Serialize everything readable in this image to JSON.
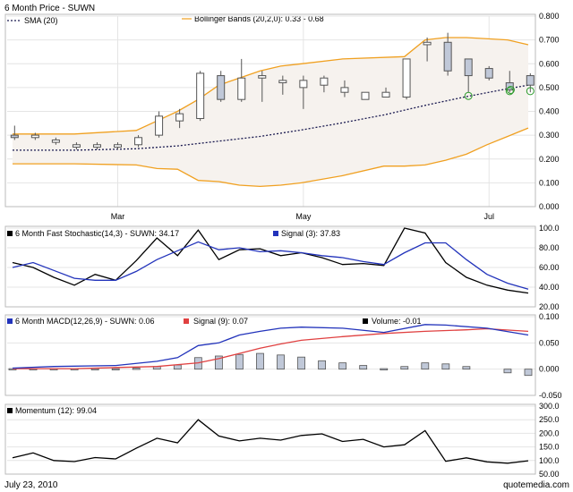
{
  "colors": {
    "sma": "#1a1a50",
    "band": "#f0a020",
    "bandFill": "#f6f2ee",
    "candle": "#555555",
    "candleUp": "#ffffff",
    "candleDown": "#c0c8d8",
    "stoch": "#000000",
    "signal": "#2233bb",
    "macd": "#2233bb",
    "macdSignal": "#e04040",
    "volume": "#000000",
    "hist": "#c0c8d8",
    "momentum": "#000000",
    "marker": "#2b9a2b"
  },
  "chart_data": [
    {
      "type": "candlestick",
      "title": "6 Month Price - SUWN",
      "legend": {
        "sma": "SMA (20)",
        "bollinger": "Bollinger Bands (20,2,0): 0.33 - 0.68"
      },
      "ylim": [
        0,
        0.8
      ],
      "yticks": [
        0,
        0.1,
        0.2,
        0.3,
        0.4,
        0.5,
        0.6,
        0.7,
        0.8
      ],
      "ytick_labels": [
        "0.000",
        "0.100",
        "0.200",
        "0.300",
        "0.400",
        "0.500",
        "0.600",
        "0.700",
        "0.800"
      ],
      "xlim": [
        0,
        25
      ],
      "month_labels": [
        {
          "x": 5.1,
          "label": "Mar"
        },
        {
          "x": 14.1,
          "label": "May"
        },
        {
          "x": 23.1,
          "label": "Jul"
        }
      ],
      "candles": [
        {
          "x": 0.1,
          "o": 0.3,
          "c": 0.29,
          "h": 0.34,
          "l": 0.28
        },
        {
          "x": 1.1,
          "o": 0.29,
          "c": 0.3,
          "h": 0.31,
          "l": 0.28
        },
        {
          "x": 2.1,
          "o": 0.27,
          "c": 0.28,
          "h": 0.29,
          "l": 0.26
        },
        {
          "x": 3.1,
          "o": 0.25,
          "c": 0.26,
          "h": 0.27,
          "l": 0.24
        },
        {
          "x": 4.1,
          "o": 0.25,
          "c": 0.26,
          "h": 0.27,
          "l": 0.24
        },
        {
          "x": 5.1,
          "o": 0.25,
          "c": 0.26,
          "h": 0.27,
          "l": 0.24
        },
        {
          "x": 6.1,
          "o": 0.26,
          "c": 0.29,
          "h": 0.3,
          "l": 0.25
        },
        {
          "x": 7.1,
          "o": 0.3,
          "c": 0.38,
          "h": 0.4,
          "l": 0.29
        },
        {
          "x": 8.1,
          "o": 0.36,
          "c": 0.39,
          "h": 0.41,
          "l": 0.33
        },
        {
          "x": 9.1,
          "o": 0.37,
          "c": 0.56,
          "h": 0.57,
          "l": 0.36
        },
        {
          "x": 10.1,
          "o": 0.55,
          "c": 0.45,
          "h": 0.57,
          "l": 0.44
        },
        {
          "x": 11.1,
          "o": 0.45,
          "c": 0.54,
          "h": 0.62,
          "l": 0.44
        },
        {
          "x": 12.1,
          "o": 0.54,
          "c": 0.55,
          "h": 0.57,
          "l": 0.44
        },
        {
          "x": 13.1,
          "o": 0.52,
          "c": 0.53,
          "h": 0.55,
          "l": 0.47
        },
        {
          "x": 14.1,
          "o": 0.5,
          "c": 0.53,
          "h": 0.55,
          "l": 0.41
        },
        {
          "x": 15.1,
          "o": 0.51,
          "c": 0.54,
          "h": 0.55,
          "l": 0.48
        },
        {
          "x": 16.1,
          "o": 0.48,
          "c": 0.5,
          "h": 0.53,
          "l": 0.46
        },
        {
          "x": 17.1,
          "o": 0.45,
          "c": 0.48,
          "h": 0.48,
          "l": 0.45
        },
        {
          "x": 18.1,
          "o": 0.46,
          "c": 0.48,
          "h": 0.5,
          "l": 0.46
        },
        {
          "x": 19.1,
          "o": 0.46,
          "c": 0.62,
          "h": 0.62,
          "l": 0.45
        },
        {
          "x": 20.1,
          "o": 0.68,
          "c": 0.69,
          "h": 0.71,
          "l": 0.61
        },
        {
          "x": 21.1,
          "o": 0.69,
          "c": 0.57,
          "h": 0.73,
          "l": 0.55
        },
        {
          "x": 22.1,
          "o": 0.62,
          "c": 0.55,
          "h": 0.62,
          "l": 0.48
        },
        {
          "x": 23.1,
          "o": 0.58,
          "c": 0.54,
          "h": 0.59,
          "l": 0.53
        },
        {
          "x": 24.1,
          "o": 0.52,
          "c": 0.49,
          "h": 0.57,
          "l": 0.48
        },
        {
          "x": 25.1,
          "o": 0.55,
          "c": 0.51,
          "h": 0.56,
          "l": 0.48
        }
      ],
      "sma": [
        [
          0,
          0.237
        ],
        [
          3,
          0.237
        ],
        [
          6,
          0.243
        ],
        [
          8,
          0.255
        ],
        [
          10,
          0.275
        ],
        [
          12,
          0.295
        ],
        [
          14,
          0.322
        ],
        [
          16,
          0.352
        ],
        [
          18,
          0.385
        ],
        [
          20,
          0.425
        ],
        [
          22,
          0.462
        ],
        [
          24,
          0.495
        ],
        [
          25,
          0.51
        ]
      ],
      "upper": [
        [
          0,
          0.305
        ],
        [
          3,
          0.305
        ],
        [
          6,
          0.32
        ],
        [
          7,
          0.36
        ],
        [
          8,
          0.4
        ],
        [
          9,
          0.45
        ],
        [
          10,
          0.51
        ],
        [
          11,
          0.54
        ],
        [
          12,
          0.57
        ],
        [
          13,
          0.59
        ],
        [
          14,
          0.6
        ],
        [
          16,
          0.62
        ],
        [
          19,
          0.63
        ],
        [
          20,
          0.7
        ],
        [
          21,
          0.71
        ],
        [
          22,
          0.71
        ],
        [
          24,
          0.7
        ],
        [
          25,
          0.68
        ]
      ],
      "lower": [
        [
          0,
          0.18
        ],
        [
          3,
          0.18
        ],
        [
          6,
          0.175
        ],
        [
          7,
          0.16
        ],
        [
          8,
          0.157
        ],
        [
          9,
          0.11
        ],
        [
          10,
          0.105
        ],
        [
          11,
          0.09
        ],
        [
          12,
          0.085
        ],
        [
          13,
          0.09
        ],
        [
          14,
          0.1
        ],
        [
          16,
          0.13
        ],
        [
          18,
          0.17
        ],
        [
          19,
          0.17
        ],
        [
          20,
          0.175
        ],
        [
          21,
          0.195
        ],
        [
          22,
          0.22
        ],
        [
          23,
          0.26
        ],
        [
          24,
          0.295
        ],
        [
          25,
          0.33
        ]
      ],
      "markers": [
        {
          "x": 22.1,
          "y": 0.465
        },
        {
          "x": 24.1,
          "y": 0.485
        },
        {
          "x": 24.15,
          "y": 0.49
        },
        {
          "x": 25.1,
          "y": 0.485
        }
      ]
    },
    {
      "type": "line",
      "title": "6 Month  Fast Stochastic(14,3) - SUWN: 34.17",
      "signal_label": "Signal (3): 37.83",
      "ylim": [
        20,
        100
      ],
      "yticks": [
        20,
        40,
        60,
        80,
        100
      ],
      "ytick_labels": [
        "20.00",
        "40.00",
        "60.00",
        "80.00",
        "100.0"
      ],
      "xlim": [
        0,
        25
      ],
      "series": [
        {
          "name": "Fast Stochastic",
          "color_key": "stoch",
          "values": [
            [
              0,
              65
            ],
            [
              1,
              60
            ],
            [
              2,
              50
            ],
            [
              3,
              42
            ],
            [
              4,
              53
            ],
            [
              5,
              47
            ],
            [
              6,
              67
            ],
            [
              7,
              90
            ],
            [
              8,
              72
            ],
            [
              9,
              98
            ],
            [
              10,
              68
            ],
            [
              11,
              78
            ],
            [
              12,
              79
            ],
            [
              13,
              72
            ],
            [
              14,
              75
            ],
            [
              15,
              70
            ],
            [
              16,
              63
            ],
            [
              17,
              64
            ],
            [
              18,
              62
            ],
            [
              19,
              100
            ],
            [
              20,
              95
            ],
            [
              21,
              65
            ],
            [
              22,
              50
            ],
            [
              23,
              42
            ],
            [
              24,
              37
            ],
            [
              25,
              34
            ]
          ]
        },
        {
          "name": "Signal",
          "color_key": "signal",
          "values": [
            [
              0,
              60
            ],
            [
              1,
              65
            ],
            [
              2,
              57
            ],
            [
              3,
              49
            ],
            [
              4,
              47
            ],
            [
              5,
              47
            ],
            [
              6,
              56
            ],
            [
              7,
              68
            ],
            [
              8,
              77
            ],
            [
              9,
              86
            ],
            [
              10,
              78
            ],
            [
              11,
              80
            ],
            [
              12,
              76
            ],
            [
              13,
              77
            ],
            [
              14,
              75
            ],
            [
              15,
              72
            ],
            [
              16,
              70
            ],
            [
              17,
              66
            ],
            [
              18,
              63
            ],
            [
              19,
              75
            ],
            [
              20,
              85
            ],
            [
              21,
              85
            ],
            [
              22,
              68
            ],
            [
              23,
              53
            ],
            [
              24,
              44
            ],
            [
              25,
              38
            ]
          ]
        }
      ]
    },
    {
      "type": "line",
      "title": "6 Month MACD(12,26,9) - SUWN: 0.06",
      "signal_label": "Signal (9): 0.07",
      "volume_label": "Volume: -0.01",
      "ylim": [
        -0.05,
        0.1
      ],
      "yticks": [
        -0.05,
        0,
        0.05,
        0.1
      ],
      "ytick_labels": [
        "-0.050",
        "0.000",
        "0.050",
        "0.100"
      ],
      "xlim": [
        0,
        25
      ],
      "series": [
        {
          "name": "MACD",
          "color_key": "macd",
          "values": [
            [
              0,
              0.002
            ],
            [
              2,
              0.005
            ],
            [
              5,
              0.007
            ],
            [
              7,
              0.015
            ],
            [
              8,
              0.022
            ],
            [
              9,
              0.045
            ],
            [
              10,
              0.05
            ],
            [
              11,
              0.065
            ],
            [
              12,
              0.072
            ],
            [
              13,
              0.078
            ],
            [
              14,
              0.08
            ],
            [
              16,
              0.078
            ],
            [
              18,
              0.07
            ],
            [
              20,
              0.085
            ],
            [
              21,
              0.084
            ],
            [
              23,
              0.078
            ],
            [
              25,
              0.065
            ]
          ]
        },
        {
          "name": "Signal",
          "color_key": "macdSignal",
          "values": [
            [
              0,
              0.001
            ],
            [
              3,
              0.001
            ],
            [
              7,
              0.005
            ],
            [
              9,
              0.012
            ],
            [
              10,
              0.02
            ],
            [
              11,
              0.03
            ],
            [
              12,
              0.04
            ],
            [
              13,
              0.048
            ],
            [
              14,
              0.055
            ],
            [
              16,
              0.062
            ],
            [
              18,
              0.068
            ],
            [
              20,
              0.072
            ],
            [
              22,
              0.075
            ],
            [
              23,
              0.077
            ],
            [
              25,
              0.072
            ]
          ]
        }
      ],
      "histogram": [
        [
          0,
          0.001
        ],
        [
          1,
          0.001
        ],
        [
          2,
          0.001
        ],
        [
          3,
          0.001
        ],
        [
          4,
          0.001
        ],
        [
          5,
          0.001
        ],
        [
          6,
          0.002
        ],
        [
          7,
          0.005
        ],
        [
          8,
          0.008
        ],
        [
          9,
          0.022
        ],
        [
          10,
          0.025
        ],
        [
          11,
          0.028
        ],
        [
          12,
          0.03
        ],
        [
          13,
          0.027
        ],
        [
          14,
          0.023
        ],
        [
          15,
          0.016
        ],
        [
          16,
          0.012
        ],
        [
          17,
          0.007
        ],
        [
          18,
          0.001
        ],
        [
          19,
          0.005
        ],
        [
          20,
          0.012
        ],
        [
          21,
          0.01
        ],
        [
          22,
          0.005
        ],
        [
          24,
          -0.007
        ],
        [
          25,
          -0.012
        ]
      ]
    },
    {
      "type": "line",
      "title": "Momentum (12): 99.04",
      "ylim": [
        50,
        300
      ],
      "yticks": [
        50,
        100,
        150,
        200,
        250,
        300
      ],
      "ytick_labels": [
        "50.00",
        "100.0",
        "150.0",
        "200.0",
        "250.0",
        "300.0"
      ],
      "xlim": [
        0,
        25
      ],
      "series": [
        {
          "name": "Momentum",
          "color_key": "momentum",
          "values": [
            [
              0,
              110
            ],
            [
              1,
              128
            ],
            [
              2,
              100
            ],
            [
              3,
              96
            ],
            [
              4,
              111
            ],
            [
              5,
              106
            ],
            [
              6,
              145
            ],
            [
              7,
              182
            ],
            [
              8,
              165
            ],
            [
              9,
              250
            ],
            [
              10,
              190
            ],
            [
              11,
              172
            ],
            [
              12,
              182
            ],
            [
              13,
              175
            ],
            [
              14,
              192
            ],
            [
              15,
              198
            ],
            [
              16,
              170
            ],
            [
              17,
              178
            ],
            [
              18,
              150
            ],
            [
              19,
              158
            ],
            [
              20,
              210
            ],
            [
              21,
              97
            ],
            [
              22,
              110
            ],
            [
              23,
              95
            ],
            [
              24,
              90
            ],
            [
              25,
              99
            ]
          ]
        }
      ]
    }
  ],
  "footer": {
    "date": "July 23, 2010",
    "brand": "quotemedia.com"
  }
}
